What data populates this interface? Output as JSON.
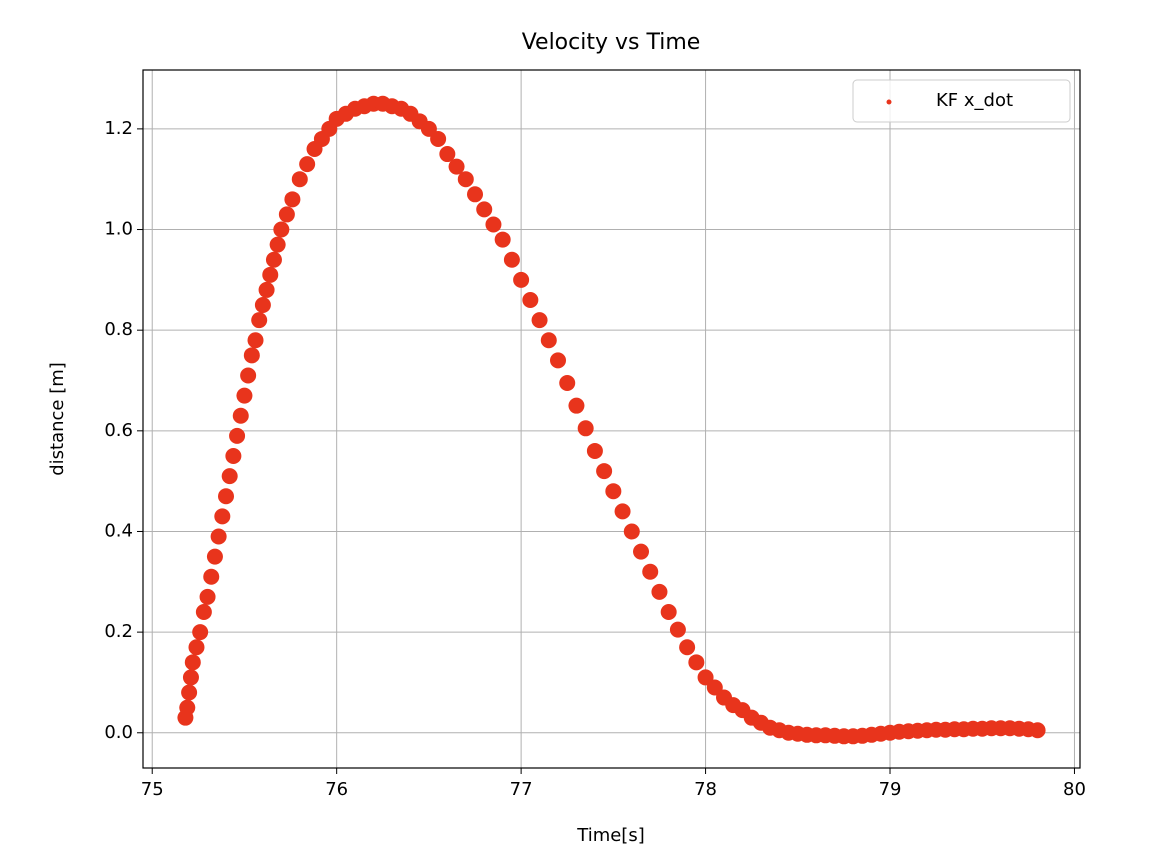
{
  "chart_data": {
    "type": "scatter",
    "title": "Velocity vs Time",
    "x_label": "Time[s]",
    "y_label": "distance [m]",
    "xlim": [
      74.95,
      80.03
    ],
    "ylim": [
      -0.07,
      1.317
    ],
    "xticks": [
      75,
      76,
      77,
      78,
      79,
      80
    ],
    "yticks": [
      {
        "value": 0,
        "label": "0.0"
      },
      0.2,
      0.4,
      0.6,
      0.8,
      {
        "value": 1,
        "label": "1.0"
      },
      1.2
    ],
    "grid": true,
    "legend": "upper right",
    "series": [
      {
        "name": "KF x_dot",
        "color": "#e8341c",
        "x": [
          75.18,
          75.19,
          75.2,
          75.21,
          75.22,
          75.24,
          75.26,
          75.28,
          75.3,
          75.32,
          75.34,
          75.36,
          75.38,
          75.4,
          75.42,
          75.44,
          75.46,
          75.48,
          75.5,
          75.52,
          75.54,
          75.56,
          75.58,
          75.6,
          75.62,
          75.64,
          75.66,
          75.68,
          75.7,
          75.73,
          75.76,
          75.8,
          75.84,
          75.88,
          75.92,
          75.96,
          76.0,
          76.05,
          76.1,
          76.15,
          76.2,
          76.25,
          76.3,
          76.35,
          76.4,
          76.45,
          76.5,
          76.55,
          76.6,
          76.65,
          76.7,
          76.75,
          76.8,
          76.85,
          76.9,
          76.95,
          77.0,
          77.05,
          77.1,
          77.15,
          77.2,
          77.25,
          77.3,
          77.35,
          77.4,
          77.45,
          77.5,
          77.55,
          77.6,
          77.65,
          77.7,
          77.75,
          77.8,
          77.85,
          77.9,
          77.95,
          78.0,
          78.05,
          78.1,
          78.15,
          78.2,
          78.25,
          78.3,
          78.35,
          78.4,
          78.45,
          78.5,
          78.55,
          78.6,
          78.65,
          78.7,
          78.75,
          78.8,
          78.85,
          78.9,
          78.95,
          79.0,
          79.05,
          79.1,
          79.15,
          79.2,
          79.25,
          79.3,
          79.35,
          79.4,
          79.45,
          79.5,
          79.55,
          79.6,
          79.65,
          79.7,
          79.75,
          79.8
        ],
        "values": [
          0.03,
          0.05,
          0.08,
          0.11,
          0.14,
          0.17,
          0.2,
          0.24,
          0.27,
          0.31,
          0.35,
          0.39,
          0.43,
          0.47,
          0.51,
          0.55,
          0.59,
          0.63,
          0.67,
          0.71,
          0.75,
          0.78,
          0.82,
          0.85,
          0.88,
          0.91,
          0.94,
          0.97,
          1.0,
          1.03,
          1.06,
          1.1,
          1.13,
          1.16,
          1.18,
          1.2,
          1.22,
          1.23,
          1.24,
          1.245,
          1.25,
          1.25,
          1.245,
          1.24,
          1.23,
          1.215,
          1.2,
          1.18,
          1.15,
          1.125,
          1.1,
          1.07,
          1.04,
          1.01,
          0.98,
          0.94,
          0.9,
          0.86,
          0.82,
          0.78,
          0.74,
          0.695,
          0.65,
          0.605,
          0.56,
          0.52,
          0.48,
          0.44,
          0.4,
          0.36,
          0.32,
          0.28,
          0.24,
          0.205,
          0.17,
          0.14,
          0.11,
          0.09,
          0.07,
          0.055,
          0.045,
          0.03,
          0.02,
          0.01,
          0.005,
          0.0,
          -0.002,
          -0.004,
          -0.005,
          -0.005,
          -0.006,
          -0.007,
          -0.007,
          -0.006,
          -0.004,
          -0.002,
          0.0,
          0.002,
          0.003,
          0.004,
          0.005,
          0.006,
          0.006,
          0.007,
          0.007,
          0.008,
          0.008,
          0.009,
          0.009,
          0.009,
          0.008,
          0.007,
          0.005
        ]
      }
    ]
  }
}
